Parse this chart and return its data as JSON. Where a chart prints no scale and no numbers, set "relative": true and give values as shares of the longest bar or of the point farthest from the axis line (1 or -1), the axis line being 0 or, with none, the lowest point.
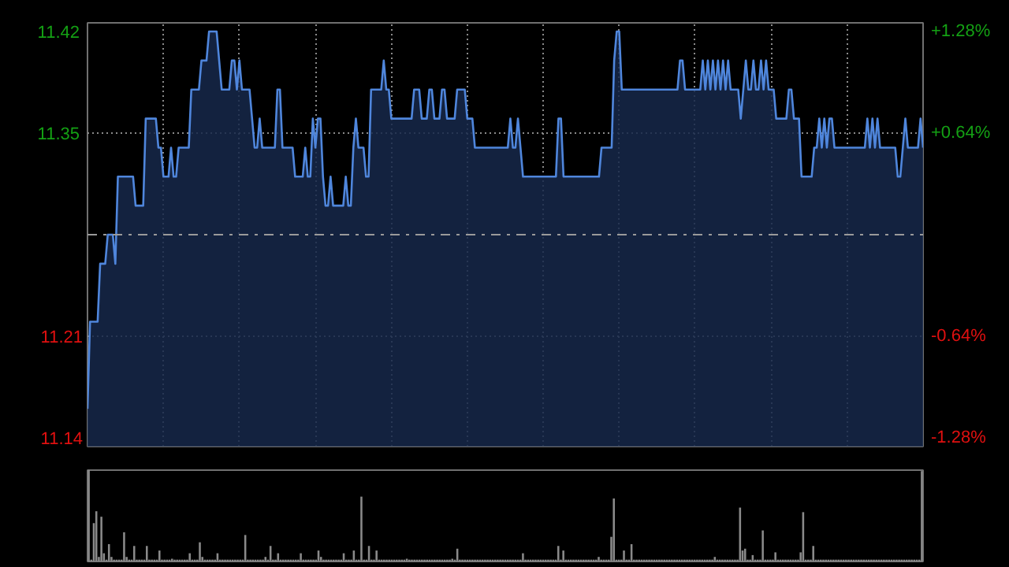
{
  "chart_data": [
    {
      "type": "area",
      "categories": [
        null,
        null,
        null,
        null,
        null,
        null,
        null,
        null,
        null,
        null,
        null,
        null,
        null,
        null,
        null,
        null,
        null,
        null,
        null,
        null,
        null,
        null,
        null,
        null,
        null,
        null,
        null,
        null,
        null,
        null,
        null,
        null,
        null,
        null,
        null,
        null,
        null,
        null,
        null,
        null,
        null,
        null,
        null,
        null,
        null,
        null,
        null,
        null,
        null,
        null,
        null,
        null,
        null,
        null,
        null,
        null,
        null,
        null,
        null,
        null,
        null,
        null,
        null,
        null,
        null,
        null,
        null,
        null,
        null,
        null,
        null,
        null,
        null,
        null,
        null,
        null,
        null,
        null,
        null,
        null,
        null,
        null,
        null,
        null,
        null,
        null,
        null,
        null,
        null,
        null,
        null,
        null,
        null,
        null,
        null,
        null,
        null,
        null,
        null,
        null,
        null,
        null,
        null,
        null,
        null,
        null,
        null,
        null,
        null,
        null,
        null,
        null,
        null,
        null,
        null,
        null,
        null,
        null,
        null,
        null,
        null,
        null,
        null,
        null,
        null,
        null,
        null,
        null,
        null,
        null,
        null,
        null,
        null,
        null,
        null,
        null,
        null,
        null,
        null,
        null,
        null,
        null,
        null,
        null,
        null,
        null,
        null,
        null,
        null,
        null,
        null,
        null,
        null,
        null,
        null,
        null,
        null,
        null,
        null,
        null,
        null,
        null,
        null,
        null,
        null,
        null,
        null,
        null,
        null,
        null,
        null,
        null,
        null,
        null,
        null,
        null,
        null,
        null,
        null,
        null,
        null,
        null,
        null,
        null,
        null,
        null,
        null,
        null,
        null,
        null,
        null,
        null,
        null,
        null,
        null,
        null,
        null,
        null,
        null,
        null,
        null,
        null,
        null,
        null,
        null,
        null,
        null,
        null,
        null,
        null,
        null,
        null,
        null,
        null,
        null,
        null,
        null,
        null,
        null,
        null,
        null,
        null,
        null,
        null,
        null,
        null,
        null,
        null,
        null,
        null,
        null,
        null,
        null,
        null,
        null,
        null,
        null,
        null,
        null,
        null,
        null,
        null,
        null,
        null,
        null,
        null,
        null,
        null,
        null,
        null,
        null,
        null,
        null,
        null,
        null,
        null,
        null,
        null,
        null,
        null,
        null,
        null,
        null,
        null,
        null,
        null,
        null,
        null,
        null,
        null,
        null,
        null,
        null,
        null,
        null,
        null,
        null,
        null,
        null,
        null,
        null,
        null,
        null,
        null,
        null,
        null,
        null,
        null,
        null,
        null,
        null,
        null,
        null,
        null,
        null,
        null,
        null,
        null,
        null,
        null,
        null,
        null,
        null,
        null,
        null,
        null,
        null,
        null,
        null,
        null,
        null,
        null,
        null,
        null,
        null,
        null,
        null,
        null,
        null,
        null,
        null,
        null,
        null,
        null,
        null,
        null,
        null,
        null,
        null,
        null,
        null
      ],
      "ylim": [
        11.134,
        11.426
      ],
      "yticks": [
        11.14,
        11.21,
        11.35,
        11.42
      ],
      "y2lim": [
        -1.335,
        1.335
      ],
      "y2ticks": [
        {
          "value": -1.28,
          "label": "-1.28%"
        },
        {
          "value": -0.64,
          "label": "-0.64%"
        },
        {
          "value": 0.64,
          "label": "+0.64%"
        },
        {
          "value": 1.28,
          "label": "+1.28%"
        }
      ],
      "tick_labels": "y",
      "grid": true,
      "ref_lines": [
        {
          "axis": "y",
          "value": 11.28,
          "label": null,
          "color": "#9a9a9a",
          "line_style": "dashed"
        }
      ],
      "series": [
        {
          "color": "#4f86dc",
          "values": [
            11.16,
            11.22,
            11.22,
            11.22,
            11.22,
            11.26,
            11.26,
            11.26,
            11.28,
            11.28,
            11.28,
            11.26,
            11.32,
            11.32,
            11.32,
            11.32,
            11.32,
            11.32,
            11.32,
            11.3,
            11.3,
            11.3,
            11.3,
            11.36,
            11.36,
            11.36,
            11.36,
            11.36,
            11.34,
            11.34,
            11.32,
            11.32,
            11.32,
            11.34,
            11.32,
            11.32,
            11.34,
            11.34,
            11.34,
            11.34,
            11.34,
            11.38,
            11.38,
            11.38,
            11.38,
            11.4,
            11.4,
            11.4,
            11.42,
            11.42,
            11.42,
            11.42,
            11.4,
            11.38,
            11.38,
            11.38,
            11.38,
            11.4,
            11.4,
            11.38,
            11.4,
            11.38,
            11.38,
            11.38,
            11.38,
            11.36,
            11.34,
            11.34,
            11.36,
            11.34,
            11.34,
            11.34,
            11.34,
            11.34,
            11.34,
            11.38,
            11.38,
            11.34,
            11.34,
            11.34,
            11.34,
            11.34,
            11.32,
            11.32,
            11.32,
            11.32,
            11.34,
            11.32,
            11.32,
            11.36,
            11.34,
            11.36,
            11.36,
            11.32,
            11.3,
            11.3,
            11.32,
            11.3,
            11.3,
            11.3,
            11.3,
            11.3,
            11.32,
            11.3,
            11.3,
            11.34,
            11.36,
            11.34,
            11.34,
            11.34,
            11.32,
            11.32,
            11.38,
            11.38,
            11.38,
            11.38,
            11.38,
            11.4,
            11.38,
            11.38,
            11.36,
            11.36,
            11.36,
            11.36,
            11.36,
            11.36,
            11.36,
            11.36,
            11.36,
            11.38,
            11.38,
            11.38,
            11.36,
            11.36,
            11.36,
            11.38,
            11.38,
            11.36,
            11.36,
            11.36,
            11.38,
            11.38,
            11.36,
            11.36,
            11.36,
            11.36,
            11.38,
            11.38,
            11.38,
            11.38,
            11.36,
            11.36,
            11.36,
            11.34,
            11.34,
            11.34,
            11.34,
            11.34,
            11.34,
            11.34,
            11.34,
            11.34,
            11.34,
            11.34,
            11.34,
            11.34,
            11.34,
            11.36,
            11.34,
            11.34,
            11.36,
            11.34,
            11.32,
            11.32,
            11.32,
            11.32,
            11.32,
            11.32,
            11.32,
            11.32,
            11.32,
            11.32,
            11.32,
            11.32,
            11.32,
            11.32,
            11.36,
            11.36,
            11.32,
            11.32,
            11.32,
            11.32,
            11.32,
            11.32,
            11.32,
            11.32,
            11.32,
            11.32,
            11.32,
            11.32,
            11.32,
            11.32,
            11.32,
            11.34,
            11.34,
            11.34,
            11.34,
            11.34,
            11.4,
            11.42,
            11.42,
            11.38,
            11.38,
            11.38,
            11.38,
            11.38,
            11.38,
            11.38,
            11.38,
            11.38,
            11.38,
            11.38,
            11.38,
            11.38,
            11.38,
            11.38,
            11.38,
            11.38,
            11.38,
            11.38,
            11.38,
            11.38,
            11.38,
            11.38,
            11.4,
            11.4,
            11.38,
            11.38,
            11.38,
            11.38,
            11.38,
            11.38,
            11.38,
            11.4,
            11.38,
            11.4,
            11.38,
            11.4,
            11.38,
            11.4,
            11.38,
            11.4,
            11.38,
            11.4,
            11.38,
            11.38,
            11.38,
            11.38,
            11.36,
            11.38,
            11.4,
            11.38,
            11.38,
            11.4,
            11.38,
            11.38,
            11.4,
            11.38,
            11.4,
            11.38,
            11.38,
            11.38,
            11.36,
            11.36,
            11.36,
            11.36,
            11.36,
            11.38,
            11.38,
            11.36,
            11.36,
            11.36,
            11.32,
            11.32,
            11.32,
            11.32,
            11.32,
            11.34,
            11.34,
            11.36,
            11.34,
            11.36,
            11.34,
            11.36,
            11.36,
            11.34,
            11.34,
            11.34,
            11.34,
            11.34,
            11.34,
            11.34,
            11.34,
            11.34,
            11.34,
            11.34,
            11.34,
            11.34,
            11.36,
            11.34,
            11.36,
            11.34,
            11.36,
            11.34,
            11.34,
            11.34,
            11.34,
            11.34,
            11.34,
            11.34,
            11.32,
            11.32,
            11.34,
            11.36,
            11.34,
            11.34,
            11.34,
            11.34,
            11.34,
            11.36,
            11.34
          ]
        }
      ]
    },
    {
      "type": "bar",
      "relative": true,
      "tick_labels": false,
      "categories": [
        null,
        null,
        null,
        null,
        null,
        null,
        null,
        null,
        null,
        null,
        null,
        null,
        null,
        null,
        null,
        null,
        null,
        null,
        null,
        null,
        null,
        null,
        null,
        null,
        null,
        null,
        null,
        null,
        null,
        null,
        null,
        null,
        null,
        null,
        null,
        null,
        null,
        null,
        null,
        null,
        null,
        null,
        null,
        null,
        null,
        null,
        null,
        null,
        null,
        null,
        null,
        null,
        null,
        null,
        null,
        null,
        null,
        null,
        null,
        null,
        null,
        null,
        null,
        null,
        null,
        null,
        null,
        null,
        null,
        null,
        null,
        null,
        null,
        null,
        null,
        null,
        null,
        null,
        null,
        null,
        null,
        null,
        null,
        null,
        null,
        null,
        null,
        null,
        null,
        null,
        null,
        null,
        null,
        null,
        null,
        null,
        null,
        null,
        null,
        null,
        null,
        null,
        null,
        null,
        null,
        null,
        null,
        null,
        null,
        null,
        null,
        null,
        null,
        null,
        null,
        null,
        null,
        null,
        null,
        null,
        null,
        null,
        null,
        null,
        null,
        null,
        null,
        null,
        null,
        null,
        null,
        null,
        null,
        null,
        null,
        null,
        null,
        null,
        null,
        null,
        null,
        null,
        null,
        null,
        null,
        null,
        null,
        null,
        null,
        null,
        null,
        null,
        null,
        null,
        null,
        null,
        null,
        null,
        null,
        null,
        null,
        null,
        null,
        null,
        null,
        null,
        null,
        null,
        null,
        null,
        null,
        null,
        null,
        null,
        null,
        null,
        null,
        null,
        null,
        null,
        null,
        null,
        null,
        null,
        null,
        null,
        null,
        null,
        null,
        null,
        null,
        null,
        null,
        null,
        null,
        null,
        null,
        null,
        null,
        null,
        null,
        null,
        null,
        null,
        null,
        null,
        null,
        null,
        null,
        null,
        null,
        null,
        null,
        null,
        null,
        null,
        null,
        null,
        null,
        null,
        null,
        null,
        null,
        null,
        null,
        null,
        null,
        null,
        null,
        null,
        null,
        null,
        null,
        null,
        null,
        null,
        null,
        null,
        null,
        null,
        null,
        null,
        null,
        null,
        null,
        null,
        null,
        null,
        null,
        null,
        null,
        null,
        null,
        null,
        null,
        null,
        null,
        null,
        null,
        null,
        null,
        null,
        null,
        null,
        null,
        null,
        null,
        null,
        null,
        null,
        null,
        null,
        null,
        null,
        null,
        null,
        null,
        null,
        null,
        null,
        null,
        null,
        null,
        null,
        null,
        null,
        null,
        null,
        null,
        null,
        null,
        null,
        null,
        null,
        null,
        null,
        null,
        null,
        null,
        null,
        null,
        null,
        null,
        null,
        null,
        null,
        null,
        null,
        null,
        null,
        null,
        null,
        null,
        null,
        null,
        null,
        null,
        null,
        null,
        null,
        null,
        null,
        null,
        null,
        null,
        null,
        null,
        null,
        null,
        null,
        null
      ],
      "series": [
        {
          "color": "#8a8a8a",
          "values": [
            1.0,
            0.02,
            0.42,
            0.55,
            0.05,
            0.49,
            0.09,
            0.02,
            0.19,
            0.05,
            0.02,
            0.02,
            0.02,
            0.02,
            0.32,
            0.05,
            0.02,
            0.02,
            0.17,
            0.02,
            0.02,
            0.02,
            0.02,
            0.17,
            0.02,
            0.02,
            0.02,
            0.02,
            0.12,
            0.02,
            0.02,
            0.02,
            0.02,
            0.03,
            0.02,
            0.02,
            0.02,
            0.02,
            0.02,
            0.02,
            0.09,
            0.02,
            0.02,
            0.02,
            0.21,
            0.05,
            0.02,
            0.02,
            0.02,
            0.02,
            0.02,
            0.09,
            0.02,
            0.02,
            0.02,
            0.02,
            0.02,
            0.02,
            0.02,
            0.02,
            0.02,
            0.02,
            0.29,
            0.02,
            0.02,
            0.02,
            0.02,
            0.02,
            0.02,
            0.02,
            0.05,
            0.02,
            0.17,
            0.02,
            0.02,
            0.09,
            0.02,
            0.02,
            0.02,
            0.02,
            0.02,
            0.02,
            0.02,
            0.02,
            0.09,
            0.02,
            0.02,
            0.02,
            0.02,
            0.02,
            0.02,
            0.12,
            0.05,
            0.02,
            0.02,
            0.02,
            0.02,
            0.02,
            0.02,
            0.02,
            0.02,
            0.09,
            0.02,
            0.02,
            0.02,
            0.12,
            0.02,
            0.02,
            0.71,
            0.02,
            0.02,
            0.17,
            0.02,
            0.02,
            0.12,
            0.02,
            0.02,
            0.02,
            0.02,
            0.02,
            0.02,
            0.02,
            0.02,
            0.02,
            0.02,
            0.02,
            0.03,
            0.02,
            0.02,
            0.02,
            0.02,
            0.02,
            0.02,
            0.02,
            0.02,
            0.02,
            0.02,
            0.02,
            0.02,
            0.02,
            0.02,
            0.02,
            0.02,
            0.02,
            0.03,
            0.02,
            0.14,
            0.02,
            0.02,
            0.02,
            0.02,
            0.02,
            0.02,
            0.02,
            0.02,
            0.02,
            0.02,
            0.02,
            0.02,
            0.02,
            0.02,
            0.02,
            0.02,
            0.02,
            0.02,
            0.02,
            0.02,
            0.02,
            0.02,
            0.02,
            0.02,
            0.02,
            0.09,
            0.02,
            0.02,
            0.02,
            0.02,
            0.02,
            0.02,
            0.02,
            0.02,
            0.02,
            0.02,
            0.02,
            0.02,
            0.02,
            0.17,
            0.02,
            0.12,
            0.02,
            0.02,
            0.02,
            0.02,
            0.02,
            0.02,
            0.02,
            0.02,
            0.02,
            0.02,
            0.02,
            0.02,
            0.02,
            0.05,
            0.02,
            0.02,
            0.02,
            0.02,
            0.27,
            0.69,
            0.02,
            0.02,
            0.02,
            0.12,
            0.02,
            0.02,
            0.19,
            0.02,
            0.02,
            0.02,
            0.02,
            0.02,
            0.02,
            0.02,
            0.02,
            0.02,
            0.02,
            0.02,
            0.02,
            0.02,
            0.02,
            0.02,
            0.02,
            0.02,
            0.02,
            0.02,
            0.02,
            0.02,
            0.02,
            0.02,
            0.02,
            0.02,
            0.02,
            0.02,
            0.02,
            0.02,
            0.02,
            0.02,
            0.02,
            0.05,
            0.02,
            0.02,
            0.02,
            0.02,
            0.02,
            0.02,
            0.02,
            0.02,
            0.02,
            0.59,
            0.12,
            0.14,
            0.02,
            0.02,
            0.07,
            0.02,
            0.02,
            0.02,
            0.34,
            0.02,
            0.02,
            0.02,
            0.02,
            0.1,
            0.02,
            0.02,
            0.02,
            0.02,
            0.02,
            0.02,
            0.02,
            0.02,
            0.02,
            0.1,
            0.54,
            0.02,
            0.02,
            0.02,
            0.17,
            0.02,
            0.02,
            0.02,
            0.02,
            0.02,
            0.02,
            0.02,
            0.02,
            0.02,
            0.02,
            0.02,
            0.02,
            0.02,
            0.02,
            0.02,
            0.02,
            0.02,
            0.02,
            0.02,
            0.02,
            0.02,
            0.02,
            0.02,
            0.02,
            0.02,
            0.02,
            0.02,
            0.02,
            0.02,
            0.02,
            0.02,
            0.02,
            0.02,
            0.02,
            0.02,
            0.02,
            0.02,
            0.02,
            0.02,
            0.02,
            0.02,
            0.02,
            0.99
          ]
        }
      ]
    }
  ]
}
